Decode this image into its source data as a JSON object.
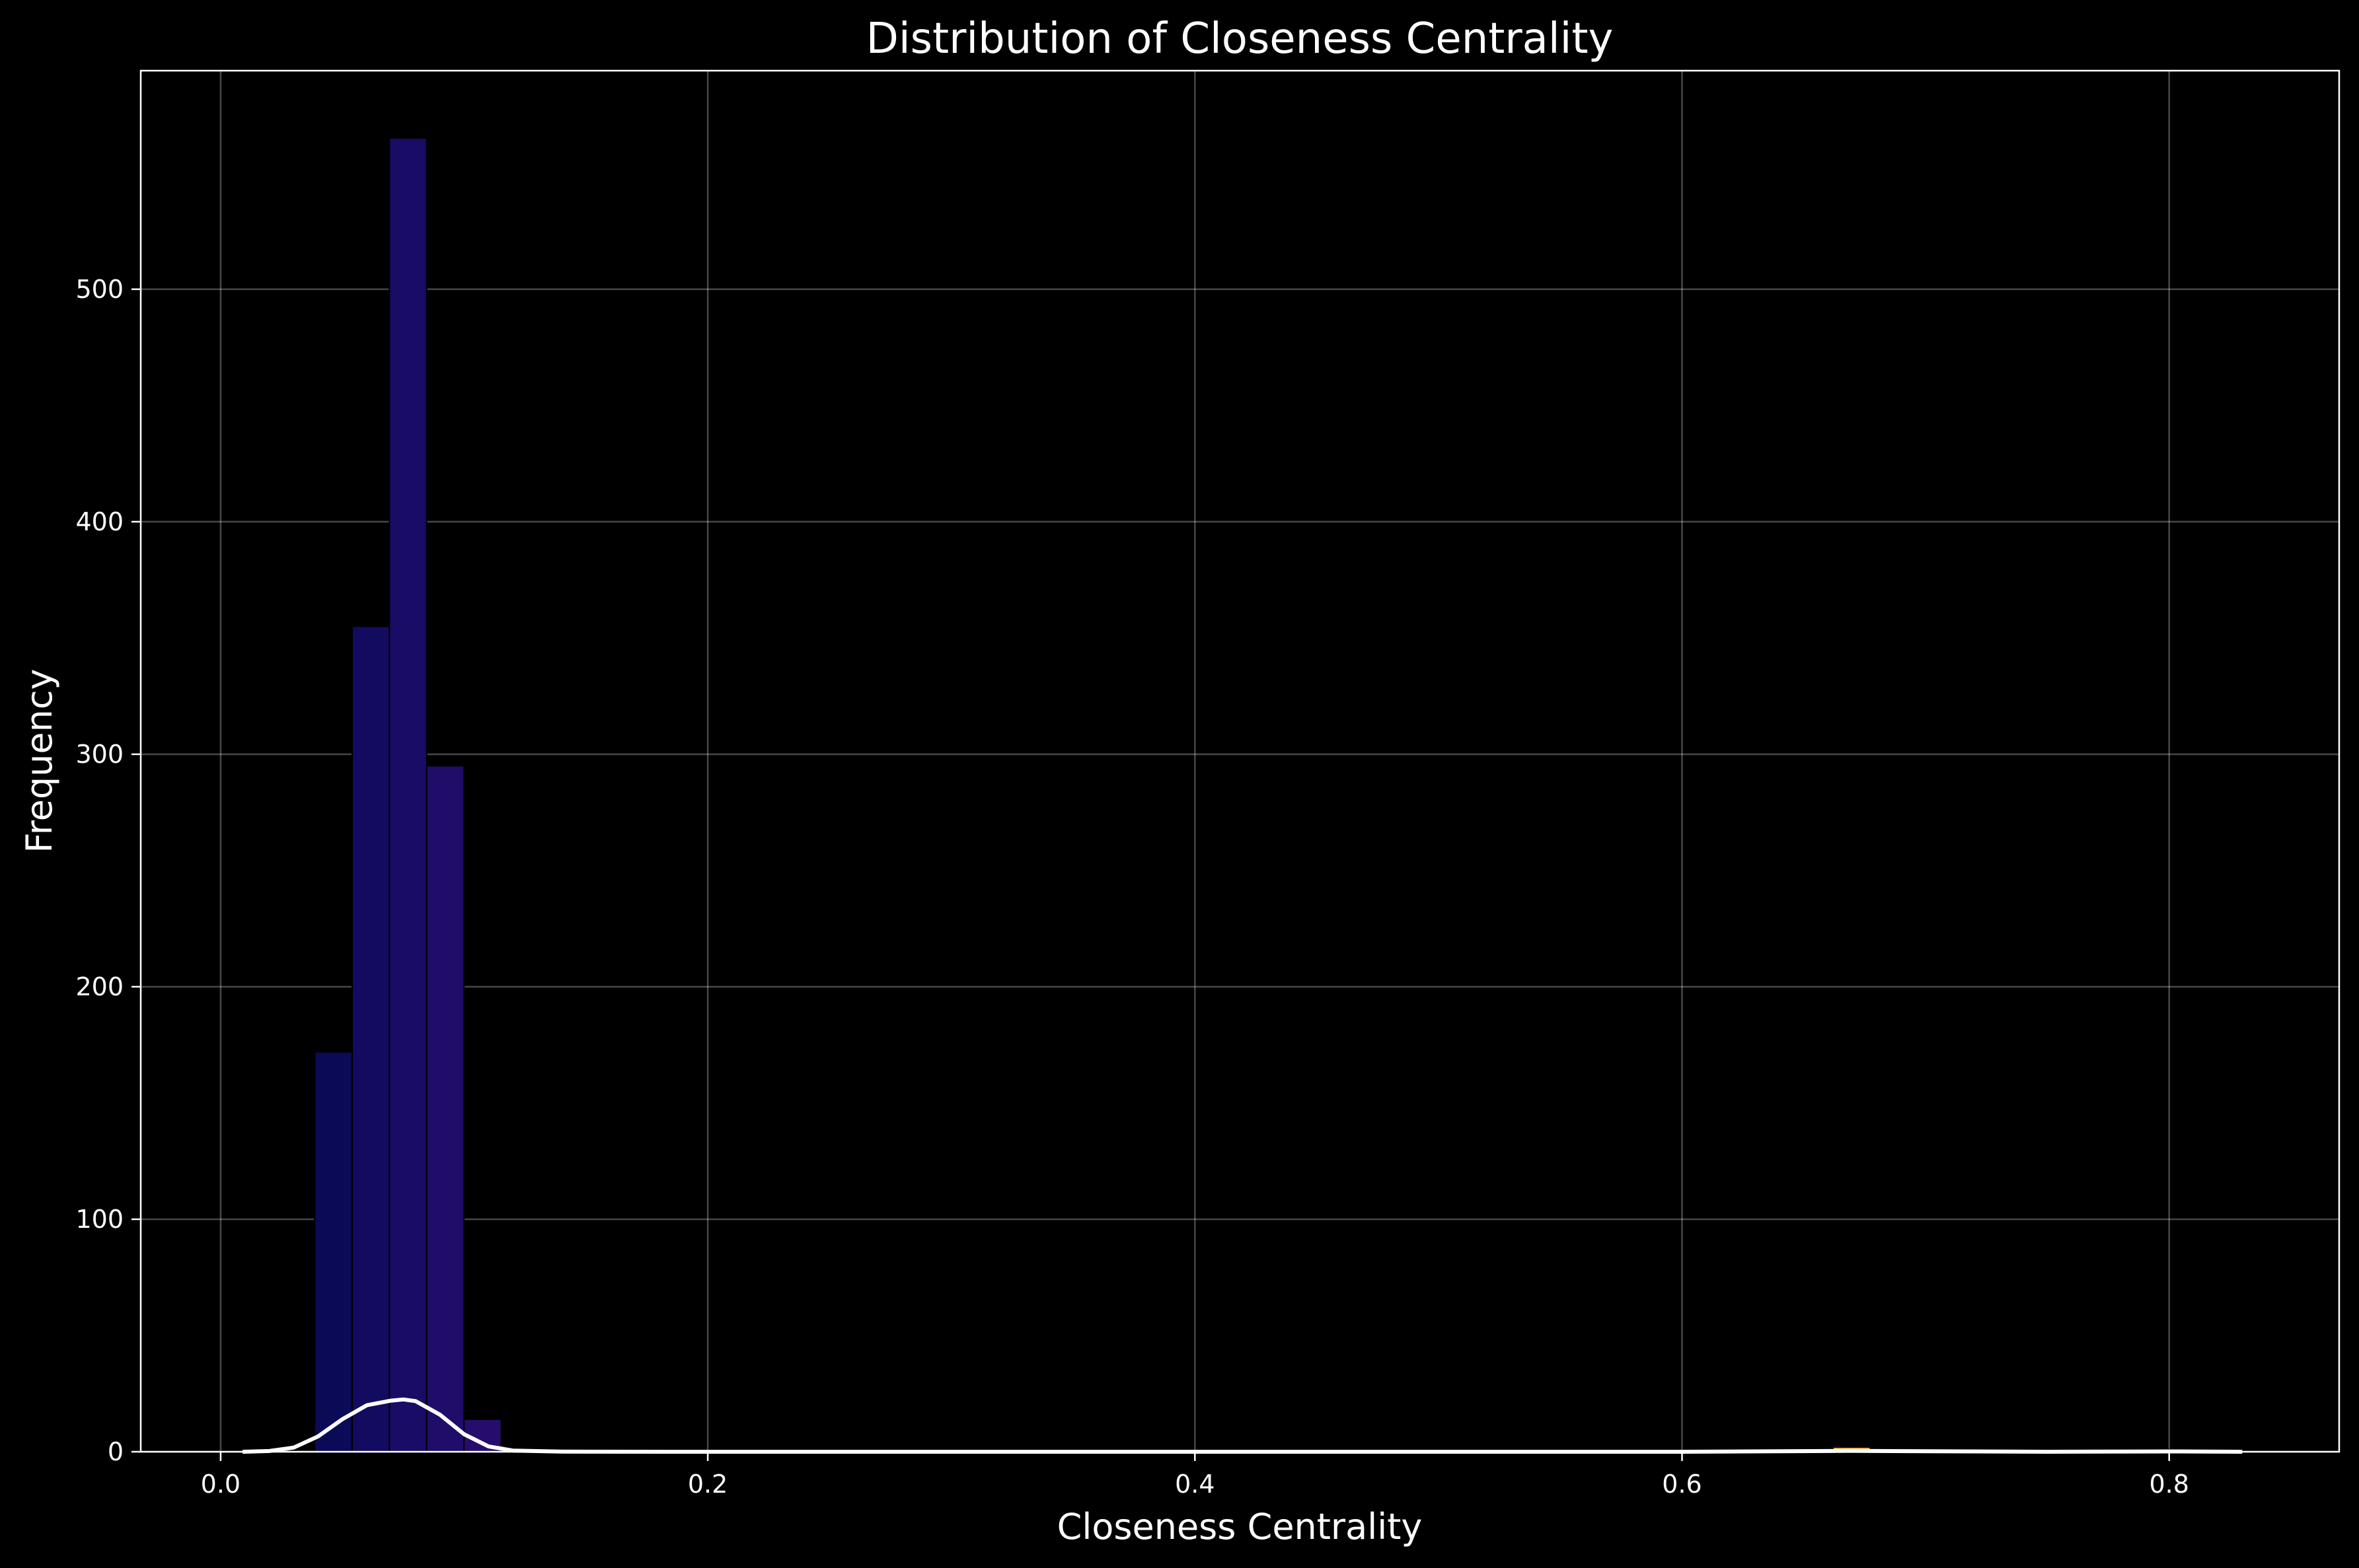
{
  "chart_data": {
    "type": "bar",
    "title": "Distribution of Closeness Centrality",
    "xlabel": "Closeness Centrality",
    "ylabel": "Frequency",
    "xlim": [
      -0.0328,
      0.8698
    ],
    "ylim": [
      0,
      594
    ],
    "xticks": [
      0.0,
      0.2,
      0.4,
      0.6,
      0.8
    ],
    "xtick_labels": [
      "0.0",
      "0.2",
      "0.4",
      "0.6",
      "0.8"
    ],
    "yticks": [
      0,
      100,
      200,
      300,
      400,
      500
    ],
    "ytick_labels": [
      "0",
      "100",
      "200",
      "300",
      "400",
      "500"
    ],
    "grid": true,
    "background": "#000000",
    "bins": [
      {
        "x0": 0.0386,
        "x1": 0.054,
        "value": 172,
        "color": "#0a0a56"
      },
      {
        "x0": 0.054,
        "x1": 0.0693,
        "value": 355,
        "color": "#130b60"
      },
      {
        "x0": 0.0693,
        "x1": 0.0846,
        "value": 565,
        "color": "#190c66"
      },
      {
        "x0": 0.0846,
        "x1": 0.0999,
        "value": 295,
        "color": "#200c69"
      },
      {
        "x0": 0.0999,
        "x1": 0.1152,
        "value": 14,
        "color": "#270d6b"
      },
      {
        "x0": 0.662,
        "x1": 0.6773,
        "value": 2,
        "color": "#e8a63a"
      },
      {
        "x0": 0.7847,
        "x1": 0.8,
        "value": 1,
        "color": "#f3dd6a"
      }
    ],
    "kde": {
      "color": "#ffffff",
      "x": [
        0.009,
        0.02,
        0.03,
        0.04,
        0.05,
        0.06,
        0.07,
        0.075,
        0.08,
        0.09,
        0.1,
        0.11,
        0.12,
        0.14,
        0.2,
        0.4,
        0.6,
        0.66,
        0.67,
        0.68,
        0.75,
        0.79,
        0.8,
        0.81,
        0.83
      ],
      "y": [
        0.0,
        0.3,
        1.8,
        6.6,
        14.0,
        20.0,
        22.0,
        22.5,
        21.8,
        16.0,
        7.5,
        2.3,
        0.5,
        0.05,
        0.0,
        0.0,
        0.0,
        0.3,
        0.4,
        0.3,
        0.0,
        0.1,
        0.15,
        0.1,
        0.0
      ]
    }
  }
}
